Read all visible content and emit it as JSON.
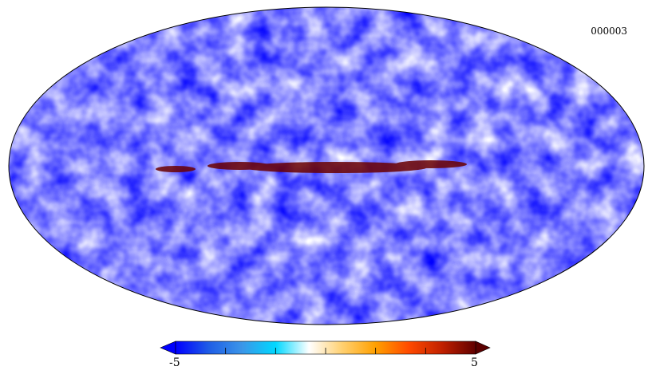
{
  "map": {
    "label": "000003",
    "projection": "mollweide"
  },
  "colorbar": {
    "min_label": "-5",
    "max_label": "5",
    "min_value": -5,
    "max_value": 5,
    "colors": [
      "#0000ff",
      "#1f5de6",
      "#3b96e8",
      "#00d8ff",
      "#ffffff",
      "#ffd070",
      "#ffa000",
      "#ff4a00",
      "#c02000",
      "#600000"
    ]
  }
}
